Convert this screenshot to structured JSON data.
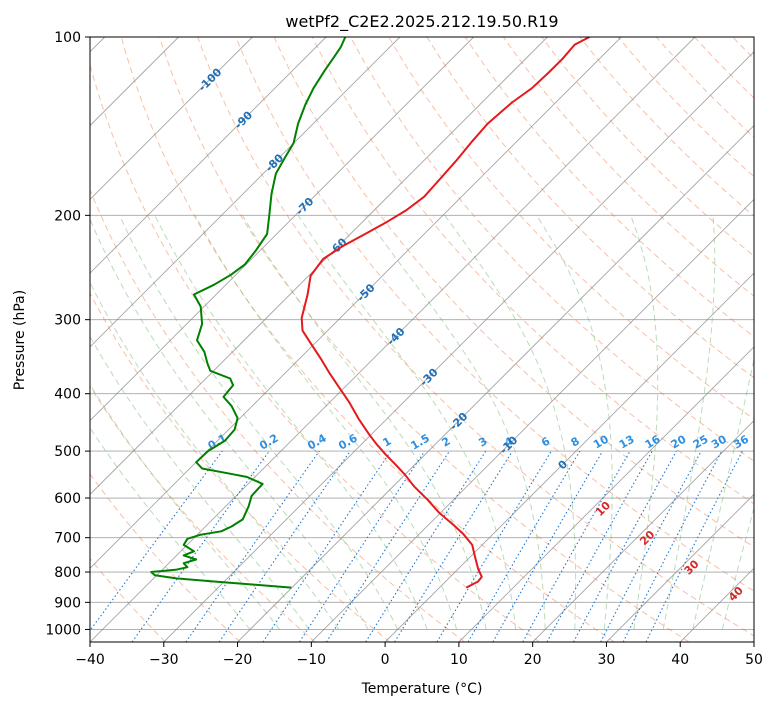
{
  "chart_data": {
    "type": "line",
    "title": "wetPf2_C2E2.2025.212.19.50.R19",
    "xlabel": "Temperature (°C)",
    "ylabel": "Pressure (hPa)",
    "xlim": [
      -40,
      50
    ],
    "ylim": [
      1050,
      100
    ],
    "y_scale": "log",
    "grid": true,
    "x_ticks": [
      -40,
      -30,
      -20,
      -10,
      0,
      10,
      20,
      30,
      40,
      50
    ],
    "y_ticks": [
      100,
      200,
      300,
      400,
      500,
      600,
      700,
      800,
      900,
      1000
    ],
    "series": [
      {
        "color": "#e41a1c",
        "points": [
          [
            11,
            850
          ],
          [
            12.6,
            830
          ],
          [
            13.1,
            815
          ],
          [
            12.6,
            790
          ],
          [
            12.2,
            755
          ],
          [
            11.8,
            720
          ],
          [
            10.6,
            690
          ],
          [
            9.2,
            665
          ],
          [
            7.3,
            635
          ],
          [
            5.8,
            605
          ],
          [
            3.9,
            573
          ],
          [
            2.7,
            548
          ],
          [
            1.3,
            525
          ],
          [
            0.1,
            507
          ],
          [
            -1.2,
            486
          ],
          [
            -2.2,
            468
          ],
          [
            -3.6,
            441
          ],
          [
            -4.9,
            413
          ],
          [
            -6.2,
            391
          ],
          [
            -7.5,
            370
          ],
          [
            -8.6,
            351
          ],
          [
            -10.0,
            330
          ],
          [
            -11.2,
            313
          ],
          [
            -11.3,
            298
          ],
          [
            -10.5,
            272
          ],
          [
            -10.1,
            253
          ],
          [
            -8.4,
            237
          ],
          [
            -5.9,
            226
          ],
          [
            -2.4,
            214
          ],
          [
            0.3,
            205
          ],
          [
            2.9,
            196
          ],
          [
            5.3,
            186
          ],
          [
            7.2,
            175
          ],
          [
            9.6,
            162
          ],
          [
            11.8,
            150
          ],
          [
            13.9,
            140
          ],
          [
            17.2,
            129
          ],
          [
            19.9,
            122
          ],
          [
            22.1,
            115
          ],
          [
            24.0,
            109
          ],
          [
            25.7,
            103
          ],
          [
            27.7,
            100
          ]
        ]
      },
      {
        "color": "#008000",
        "points": [
          [
            -12.7,
            850
          ],
          [
            -17.8,
            840
          ],
          [
            -23.2,
            830
          ],
          [
            -28.3,
            820
          ],
          [
            -31.2,
            810
          ],
          [
            -31.7,
            800
          ],
          [
            -28.4,
            793
          ],
          [
            -26.8,
            785
          ],
          [
            -27.3,
            773
          ],
          [
            -25.6,
            762
          ],
          [
            -27.3,
            750
          ],
          [
            -25.9,
            738
          ],
          [
            -27.3,
            720
          ],
          [
            -26.8,
            703
          ],
          [
            -25.0,
            692
          ],
          [
            -22.2,
            683
          ],
          [
            -20.8,
            670
          ],
          [
            -19.3,
            652
          ],
          [
            -18.5,
            620
          ],
          [
            -18.1,
            595
          ],
          [
            -16.6,
            568
          ],
          [
            -18.7,
            553
          ],
          [
            -21.3,
            545
          ],
          [
            -24.8,
            535
          ],
          [
            -25.6,
            522
          ],
          [
            -24.0,
            500
          ],
          [
            -21.7,
            480
          ],
          [
            -20.4,
            460
          ],
          [
            -20.0,
            440
          ],
          [
            -20.8,
            420
          ],
          [
            -21.9,
            405
          ],
          [
            -20.6,
            387
          ],
          [
            -21.0,
            377
          ],
          [
            -23.7,
            366
          ],
          [
            -24.1,
            355
          ],
          [
            -24.5,
            340
          ],
          [
            -25.5,
            325
          ],
          [
            -24.8,
            305
          ],
          [
            -25.0,
            285
          ],
          [
            -25.9,
            272
          ],
          [
            -23.2,
            262
          ],
          [
            -20.9,
            252
          ],
          [
            -19.0,
            242
          ],
          [
            -17.6,
            230
          ],
          [
            -16.0,
            215
          ],
          [
            -15.7,
            200
          ],
          [
            -15.4,
            184
          ],
          [
            -14.8,
            170
          ],
          [
            -13.6,
            160
          ],
          [
            -12.4,
            151
          ],
          [
            -11.8,
            140
          ],
          [
            -10.8,
            130
          ],
          [
            -9.7,
            122
          ],
          [
            -8.2,
            114
          ],
          [
            -6.9,
            108
          ],
          [
            -6.0,
            104
          ],
          [
            -5.4,
            100
          ]
        ]
      }
    ],
    "isotherm_labels": [
      {
        "text": "-100",
        "t": -100,
        "p": 118
      },
      {
        "text": "-90",
        "t": -90,
        "p": 138
      },
      {
        "text": "-80",
        "t": -80,
        "p": 163
      },
      {
        "text": "-70",
        "t": -70,
        "p": 193
      },
      {
        "text": "-60",
        "t": -60,
        "p": 226
      },
      {
        "text": "-50",
        "t": -50,
        "p": 270
      },
      {
        "text": "-40",
        "t": -40,
        "p": 320
      },
      {
        "text": "-30",
        "t": -30,
        "p": 375
      },
      {
        "text": "-20",
        "t": -20,
        "p": 445
      },
      {
        "text": "-10",
        "t": -10,
        "p": 488
      },
      {
        "text": "0",
        "t": 0,
        "p": 527
      }
    ],
    "mixing_ratio_labels": [
      {
        "text": "0.1",
        "x": -22.5
      },
      {
        "text": "0.2",
        "x": -15.5
      },
      {
        "text": "0.4",
        "x": -9.0
      },
      {
        "text": "0.6",
        "x": -4.8
      },
      {
        "text": "1",
        "x": 0.5
      },
      {
        "text": "1.5",
        "x": 5.0
      },
      {
        "text": "2",
        "x": 8.5
      },
      {
        "text": "3",
        "x": 13.5
      },
      {
        "text": "4",
        "x": 17.0
      },
      {
        "text": "6",
        "x": 22.0
      },
      {
        "text": "8",
        "x": 26.0
      },
      {
        "text": "10",
        "x": 29.5
      },
      {
        "text": "13",
        "x": 33.0
      },
      {
        "text": "16",
        "x": 36.5
      },
      {
        "text": "20",
        "x": 40.0
      },
      {
        "text": "25",
        "x": 43.0
      },
      {
        "text": "30",
        "x": 45.5
      },
      {
        "text": "36",
        "x": 48.5
      }
    ],
    "moist_adiabat_labels": [
      {
        "text": "10",
        "t": 29.5,
        "p": 625
      },
      {
        "text": "20",
        "t": 35.5,
        "p": 700
      },
      {
        "text": "30",
        "t": 41.5,
        "p": 785
      },
      {
        "text": "40",
        "t": 47.5,
        "p": 870
      }
    ]
  },
  "colors": {
    "temperature": "#e41a1c",
    "dewpoint": "#008000",
    "dry_adiabat": "#f4a582",
    "moist_adiabat": "#7fbf7f",
    "mixing_ratio": "#1f78d1",
    "isotherm": "#888888",
    "isotherm_label": "#1f6fb4",
    "moist_label": "#d62728"
  }
}
